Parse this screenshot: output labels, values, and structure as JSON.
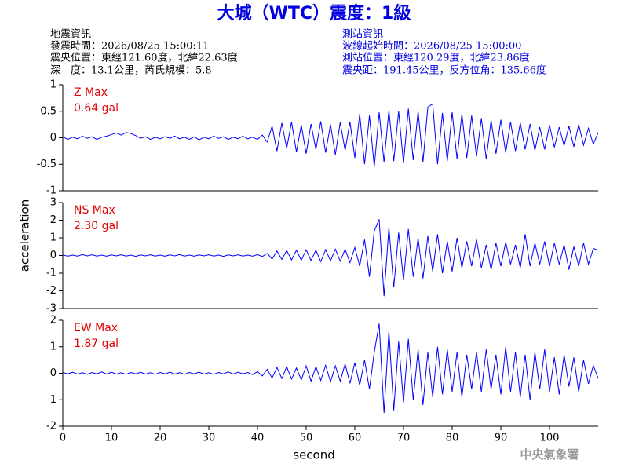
{
  "header": {
    "title": "大城（WTC）震度：1級",
    "left": [
      "地震資訊",
      "發震時間：2026/08/25 15:00:11",
      "震央位置：東經121.60度，北緯22.63度",
      "深　度：13.1公里，芮氏規模：5.8"
    ],
    "right": [
      "測站資訊",
      "波線起始時間：2026/08/25 15:00:00",
      "測站位置：東經120.29度，北緯23.86度",
      "震央距：191.45公里，反方位角：135.66度"
    ]
  },
  "ylabel": "acceleration",
  "xlabel": "second",
  "footer": "中央氣象署",
  "chart_data": [
    {
      "type": "line",
      "annotations": [
        "Z Max",
        "0.64 gal"
      ],
      "annotation_color": "#e00000",
      "xlim": [
        0,
        110
      ],
      "ylim": [
        -1,
        1
      ],
      "yticks": [
        -1,
        -0.5,
        0,
        0.5,
        1
      ],
      "x": [
        0,
        1,
        2,
        3,
        4,
        5,
        6,
        7,
        8,
        9,
        10,
        11,
        12,
        13,
        14,
        15,
        16,
        17,
        18,
        19,
        20,
        21,
        22,
        23,
        24,
        25,
        26,
        27,
        28,
        29,
        30,
        31,
        32,
        33,
        34,
        35,
        36,
        37,
        38,
        39,
        40,
        41,
        42,
        43,
        44,
        45,
        46,
        47,
        48,
        49,
        50,
        51,
        52,
        53,
        54,
        55,
        56,
        57,
        58,
        59,
        60,
        61,
        62,
        63,
        64,
        65,
        66,
        67,
        68,
        69,
        70,
        71,
        72,
        73,
        74,
        75,
        76,
        77,
        78,
        79,
        80,
        81,
        82,
        83,
        84,
        85,
        86,
        87,
        88,
        89,
        90,
        91,
        92,
        93,
        94,
        95,
        96,
        97,
        98,
        99,
        100,
        101,
        102,
        103,
        104,
        105,
        106,
        107,
        108,
        109,
        110
      ],
      "series": [
        {
          "color": "#0000ff",
          "values": [
            0.02,
            -0.03,
            0.01,
            -0.02,
            0.03,
            -0.01,
            0.02,
            -0.03,
            0.01,
            0.03,
            0.06,
            0.09,
            0.05,
            0.1,
            0.08,
            0.04,
            -0.01,
            0.02,
            -0.03,
            0.01,
            -0.02,
            0.02,
            -0.01,
            0.03,
            -0.02,
            0.01,
            -0.03,
            0.02,
            -0.04,
            0.01,
            -0.02,
            0.03,
            -0.01,
            0.02,
            -0.03,
            0.01,
            -0.02,
            0.03,
            -0.02,
            0.01,
            -0.03,
            0.05,
            -0.08,
            0.22,
            -0.25,
            0.28,
            -0.2,
            0.3,
            -0.27,
            0.24,
            -0.3,
            0.26,
            -0.22,
            0.31,
            -0.28,
            0.25,
            -0.32,
            0.29,
            -0.24,
            0.3,
            -0.38,
            0.45,
            -0.5,
            0.42,
            -0.55,
            0.48,
            -0.46,
            0.52,
            -0.44,
            0.5,
            -0.48,
            0.55,
            -0.42,
            0.5,
            -0.46,
            0.58,
            0.64,
            -0.5,
            0.47,
            -0.44,
            0.48,
            -0.4,
            0.45,
            -0.38,
            0.42,
            -0.35,
            0.37,
            -0.4,
            0.33,
            -0.3,
            0.34,
            -0.28,
            0.3,
            -0.25,
            0.28,
            -0.22,
            0.26,
            -0.24,
            0.2,
            -0.22,
            0.24,
            -0.18,
            0.2,
            -0.15,
            0.22,
            -0.17,
            0.25,
            -0.14,
            0.18,
            -0.12,
            0.1
          ]
        }
      ]
    },
    {
      "type": "line",
      "annotations": [
        "NS Max",
        "2.30 gal"
      ],
      "annotation_color": "#e00000",
      "xlim": [
        0,
        110
      ],
      "ylim": [
        -3,
        3
      ],
      "yticks": [
        -3,
        -2,
        -1,
        0,
        1,
        2,
        3
      ],
      "x": [
        0,
        1,
        2,
        3,
        4,
        5,
        6,
        7,
        8,
        9,
        10,
        11,
        12,
        13,
        14,
        15,
        16,
        17,
        18,
        19,
        20,
        21,
        22,
        23,
        24,
        25,
        26,
        27,
        28,
        29,
        30,
        31,
        32,
        33,
        34,
        35,
        36,
        37,
        38,
        39,
        40,
        41,
        42,
        43,
        44,
        45,
        46,
        47,
        48,
        49,
        50,
        51,
        52,
        53,
        54,
        55,
        56,
        57,
        58,
        59,
        60,
        61,
        62,
        63,
        64,
        65,
        66,
        67,
        68,
        69,
        70,
        71,
        72,
        73,
        74,
        75,
        76,
        77,
        78,
        79,
        80,
        81,
        82,
        83,
        84,
        85,
        86,
        87,
        88,
        89,
        90,
        91,
        92,
        93,
        94,
        95,
        96,
        97,
        98,
        99,
        100,
        101,
        102,
        103,
        104,
        105,
        106,
        107,
        108,
        109,
        110
      ],
      "series": [
        {
          "color": "#0000ff",
          "values": [
            0.03,
            -0.04,
            0.02,
            -0.03,
            0.05,
            -0.02,
            0.04,
            -0.03,
            0.02,
            -0.04,
            0.03,
            -0.02,
            0.04,
            -0.03,
            0.02,
            -0.05,
            0.03,
            -0.02,
            0.04,
            -0.03,
            0.02,
            -0.04,
            0.03,
            -0.02,
            0.05,
            -0.03,
            0.02,
            -0.04,
            0.03,
            -0.02,
            0.04,
            -0.03,
            0.02,
            -0.05,
            0.03,
            -0.02,
            0.04,
            -0.03,
            0.02,
            -0.04,
            0.05,
            -0.06,
            0.12,
            -0.2,
            0.25,
            -0.22,
            0.28,
            -0.25,
            0.3,
            -0.27,
            0.32,
            -0.28,
            0.3,
            -0.35,
            0.33,
            -0.3,
            0.36,
            -0.32,
            0.35,
            -0.4,
            0.45,
            -0.6,
            0.9,
            -1.2,
            1.4,
            2.05,
            -2.3,
            1.6,
            -1.8,
            1.3,
            -1.4,
            1.5,
            -1.2,
            1.0,
            -1.3,
            1.1,
            -0.9,
            1.2,
            -1.0,
            0.8,
            -0.9,
            1.0,
            -0.7,
            0.8,
            -0.6,
            0.9,
            -0.7,
            0.6,
            -0.8,
            0.7,
            -0.6,
            0.75,
            -0.5,
            0.6,
            -0.7,
            1.2,
            -0.6,
            0.7,
            -0.5,
            0.8,
            -0.6,
            0.7,
            -0.5,
            0.6,
            -0.8,
            0.5,
            -0.6,
            0.7,
            -0.5,
            0.4,
            0.3
          ]
        }
      ]
    },
    {
      "type": "line",
      "annotations": [
        "EW Max",
        "1.87 gal"
      ],
      "annotation_color": "#e00000",
      "xlim": [
        0,
        110
      ],
      "ylim": [
        -2,
        2
      ],
      "yticks": [
        -2,
        -1,
        0,
        1,
        2
      ],
      "xticks": [
        0,
        10,
        20,
        30,
        40,
        50,
        60,
        70,
        80,
        90,
        100
      ],
      "x": [
        0,
        1,
        2,
        3,
        4,
        5,
        6,
        7,
        8,
        9,
        10,
        11,
        12,
        13,
        14,
        15,
        16,
        17,
        18,
        19,
        20,
        21,
        22,
        23,
        24,
        25,
        26,
        27,
        28,
        29,
        30,
        31,
        32,
        33,
        34,
        35,
        36,
        37,
        38,
        39,
        40,
        41,
        42,
        43,
        44,
        45,
        46,
        47,
        48,
        49,
        50,
        51,
        52,
        53,
        54,
        55,
        56,
        57,
        58,
        59,
        60,
        61,
        62,
        63,
        64,
        65,
        66,
        67,
        68,
        69,
        70,
        71,
        72,
        73,
        74,
        75,
        76,
        77,
        78,
        79,
        80,
        81,
        82,
        83,
        84,
        85,
        86,
        87,
        88,
        89,
        90,
        91,
        92,
        93,
        94,
        95,
        96,
        97,
        98,
        99,
        100,
        101,
        102,
        103,
        104,
        105,
        106,
        107,
        108,
        109,
        110
      ],
      "series": [
        {
          "color": "#0000ff",
          "values": [
            0.03,
            -0.02,
            0.04,
            -0.03,
            0.02,
            -0.04,
            0.03,
            -0.02,
            0.05,
            -0.03,
            0.04,
            -0.03,
            0.02,
            -0.04,
            0.03,
            -0.02,
            0.04,
            -0.03,
            0.02,
            -0.04,
            0.03,
            -0.02,
            0.04,
            -0.03,
            0.02,
            -0.04,
            0.03,
            -0.02,
            0.04,
            -0.03,
            0.02,
            -0.04,
            0.03,
            -0.02,
            0.05,
            -0.03,
            0.04,
            -0.02,
            0.03,
            -0.05,
            0.06,
            -0.1,
            0.15,
            -0.18,
            0.22,
            -0.2,
            0.25,
            -0.22,
            0.2,
            -0.25,
            0.28,
            -0.3,
            0.25,
            -0.27,
            0.3,
            -0.32,
            0.28,
            -0.3,
            0.35,
            -0.38,
            0.4,
            -0.45,
            0.5,
            -0.6,
            0.8,
            1.87,
            -1.5,
            1.6,
            -1.4,
            1.2,
            -1.1,
            1.3,
            -1.0,
            0.9,
            -1.2,
            0.8,
            -0.9,
            1.0,
            -0.8,
            0.9,
            -0.7,
            0.8,
            -0.9,
            0.7,
            -0.6,
            0.8,
            -0.7,
            0.9,
            -0.6,
            0.7,
            -0.8,
            1.0,
            -0.7,
            0.8,
            -0.9,
            0.7,
            -1.0,
            0.8,
            -0.6,
            0.9,
            -0.7,
            0.6,
            -0.8,
            0.7,
            -0.5,
            0.6,
            -0.7,
            0.5,
            -0.4,
            0.3,
            -0.2
          ]
        }
      ]
    }
  ]
}
